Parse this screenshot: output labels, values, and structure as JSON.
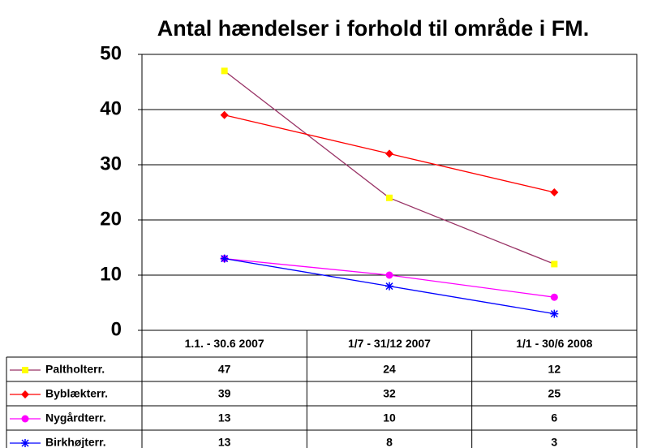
{
  "chart_data": {
    "type": "line",
    "title": "Antal hændelser i forhold til område i FM.",
    "categories": [
      "1.1. - 30.6 2007",
      "1/7 - 31/12 2007",
      "1/1 - 30/6 2008"
    ],
    "series": [
      {
        "name": "Paltholterr.",
        "color": "#ffff00",
        "line_color": "#993366",
        "marker": "square",
        "values": [
          47,
          24,
          12
        ]
      },
      {
        "name": "Byblækterr.",
        "color": "#ff0000",
        "line_color": "#ff0000",
        "marker": "diamond",
        "values": [
          39,
          32,
          25
        ]
      },
      {
        "name": "Nygårdterr.",
        "color": "#ff00ff",
        "line_color": "#ff00ff",
        "marker": "circle",
        "values": [
          13,
          10,
          6
        ]
      },
      {
        "name": "Birkhøjterr.",
        "color": "#0000ff",
        "line_color": "#0000ff",
        "marker": "star",
        "values": [
          13,
          8,
          3
        ]
      }
    ],
    "ylim": [
      0,
      50
    ],
    "yticks": [
      0,
      10,
      20,
      30,
      40,
      50
    ],
    "grid": true,
    "data_table": true
  }
}
